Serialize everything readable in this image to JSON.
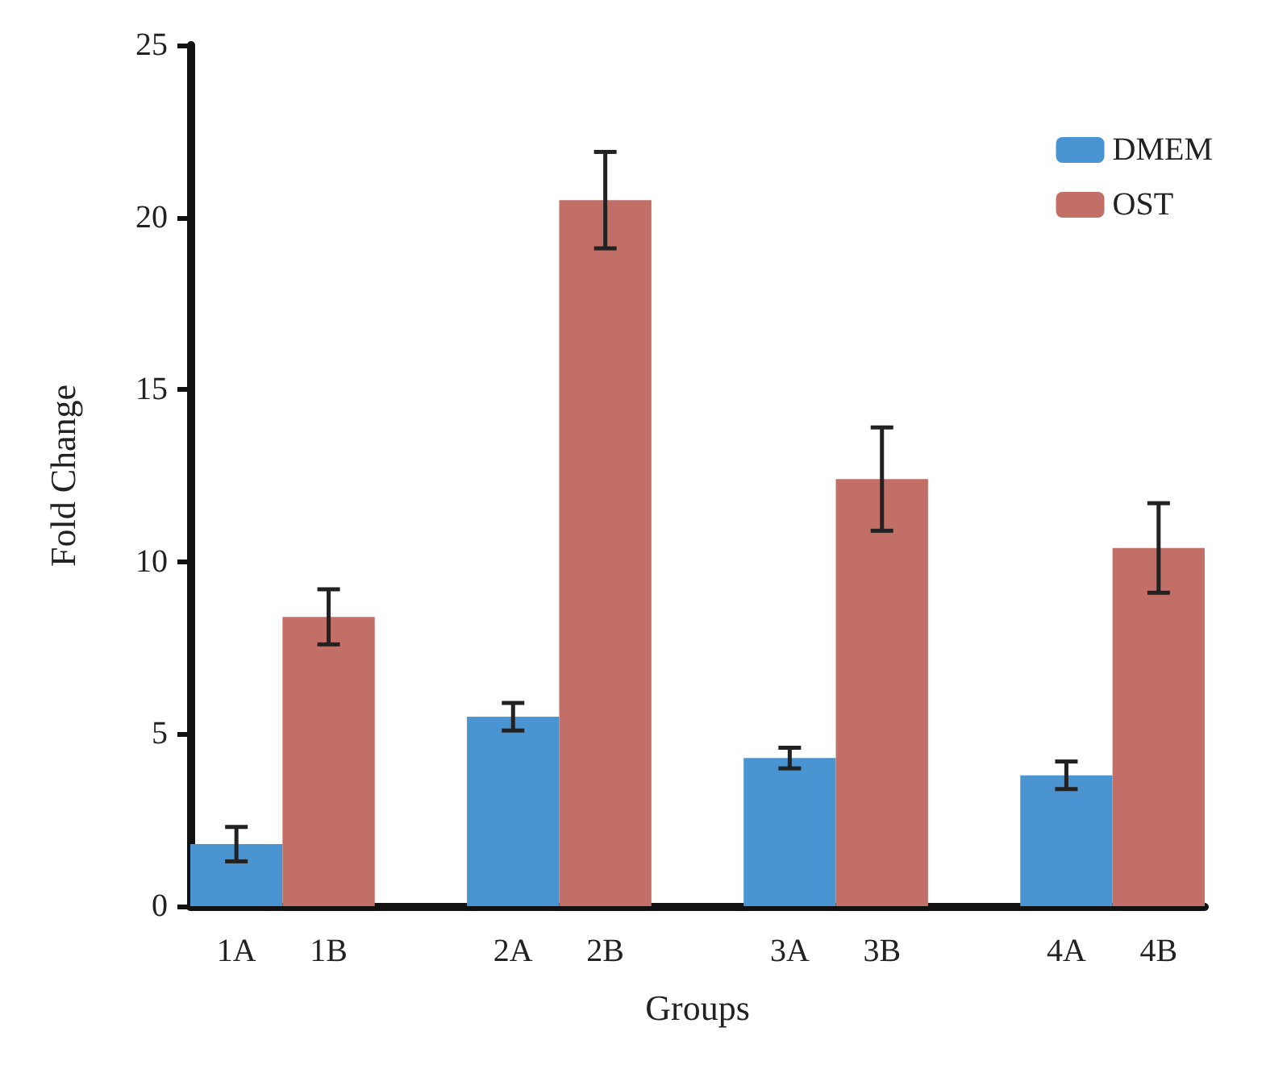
{
  "chart_data": {
    "type": "bar",
    "xlabel": "Groups",
    "ylabel": "Fold Change",
    "categories": [
      "1A",
      "1B",
      null,
      "2A",
      "2B",
      null,
      "3A",
      "3B",
      null,
      "4A",
      "4B"
    ],
    "series": [
      {
        "name": "DMEM",
        "color": "#4a94d2",
        "values": [
          1.8,
          null,
          null,
          5.5,
          null,
          null,
          4.3,
          null,
          null,
          3.8,
          null
        ],
        "errors": [
          0.5,
          null,
          null,
          0.4,
          null,
          null,
          0.3,
          null,
          null,
          0.4,
          null
        ]
      },
      {
        "name": "OST",
        "color": "#c26f67",
        "values": [
          null,
          8.4,
          null,
          null,
          20.5,
          null,
          null,
          12.4,
          null,
          null,
          10.4
        ],
        "errors": [
          null,
          0.8,
          null,
          null,
          1.4,
          null,
          null,
          1.5,
          null,
          null,
          1.3
        ]
      }
    ],
    "ylim": [
      0,
      25
    ],
    "yticks": [
      0,
      5,
      10,
      15,
      20,
      25
    ],
    "grid": false,
    "legend": "top right"
  }
}
